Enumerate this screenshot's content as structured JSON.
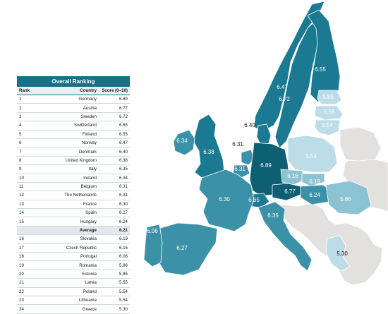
{
  "ranking": {
    "title": "Overall Ranking",
    "headers": {
      "rank": "Rank",
      "country": "Country",
      "score": "Score (0–10)"
    },
    "rows": [
      {
        "rank": "1",
        "country": "Germany",
        "score": "6.89"
      },
      {
        "rank": "2",
        "country": "Austria",
        "score": "6.77"
      },
      {
        "rank": "3",
        "country": "Sweden",
        "score": "6.72"
      },
      {
        "rank": "4",
        "country": "Switzerland",
        "score": "6.65"
      },
      {
        "rank": "5",
        "country": "Finland",
        "score": "6.55"
      },
      {
        "rank": "6",
        "country": "Norway",
        "score": "6.47"
      },
      {
        "rank": "7",
        "country": "Denmark",
        "score": "6.40"
      },
      {
        "rank": "8",
        "country": "United Kingdom",
        "score": "6.38"
      },
      {
        "rank": "9",
        "country": "Italy",
        "score": "6.35"
      },
      {
        "rank": "10",
        "country": "Ireland",
        "score": "6.34"
      },
      {
        "rank": "11",
        "country": "Belgium",
        "score": "6.31"
      },
      {
        "rank": "12",
        "country": "The Netherlands",
        "score": "6.31"
      },
      {
        "rank": "13",
        "country": "France",
        "score": "6.30"
      },
      {
        "rank": "14",
        "country": "Spain",
        "score": "6.27"
      },
      {
        "rank": "15",
        "country": "Hungary",
        "score": "6.24"
      },
      {
        "rank": "",
        "country": "Average",
        "score": "6.21",
        "average": true
      },
      {
        "rank": "16",
        "country": "Slovakia",
        "score": "6.19"
      },
      {
        "rank": "17",
        "country": "Czech Republic",
        "score": "6.16"
      },
      {
        "rank": "18",
        "country": "Portugal",
        "score": "6.06"
      },
      {
        "rank": "19",
        "country": "Romania",
        "score": "5.86"
      },
      {
        "rank": "20",
        "country": "Estonia",
        "score": "5.85"
      },
      {
        "rank": "21",
        "country": "Latvia",
        "score": "5.55"
      },
      {
        "rank": "22",
        "country": "Poland",
        "score": "5.54"
      },
      {
        "rank": "23",
        "country": "Lithuania",
        "score": "5.54"
      },
      {
        "rank": "24",
        "country": "Greece",
        "score": "5.30"
      }
    ]
  },
  "map": {
    "colors": {
      "darkest": "#0e5f73",
      "dark": "#1b7a91",
      "mid": "#3b91a8",
      "light": "#8cc3d3",
      "lightest": "#bcdde7",
      "unranked": "#e3e1de"
    },
    "countries": [
      {
        "name": "Norway",
        "score": "6.47",
        "shade": "dark"
      },
      {
        "name": "Sweden",
        "score": "6.72",
        "shade": "dark"
      },
      {
        "name": "Finland",
        "score": "6.55",
        "shade": "dark"
      },
      {
        "name": "Estonia",
        "score": "5.85",
        "shade": "lightest"
      },
      {
        "name": "Latvia",
        "score": "5.55",
        "shade": "lightest"
      },
      {
        "name": "Lithuania",
        "score": "5.54",
        "shade": "lightest"
      },
      {
        "name": "Denmark",
        "score": "6.40",
        "shade": "dark"
      },
      {
        "name": "United Kingdom",
        "score": "6.38",
        "shade": "dark"
      },
      {
        "name": "Ireland",
        "score": "6.34",
        "shade": "mid"
      },
      {
        "name": "The Netherlands",
        "score": "6.31",
        "shade": "mid"
      },
      {
        "name": "Belgium",
        "score": "6.31",
        "shade": "mid"
      },
      {
        "name": "Germany",
        "score": "6.89",
        "shade": "darkest"
      },
      {
        "name": "Poland",
        "score": "5.54",
        "shade": "lightest"
      },
      {
        "name": "Czech Republic",
        "score": "6.16",
        "shade": "light"
      },
      {
        "name": "Slovakia",
        "score": "6.19",
        "shade": "light"
      },
      {
        "name": "Austria",
        "score": "6.77",
        "shade": "darkest"
      },
      {
        "name": "Switzerland",
        "score": "6.65",
        "shade": "dark"
      },
      {
        "name": "Hungary",
        "score": "6.24",
        "shade": "mid"
      },
      {
        "name": "Romania",
        "score": "5.86",
        "shade": "light"
      },
      {
        "name": "France",
        "score": "6.30",
        "shade": "mid"
      },
      {
        "name": "Italy",
        "score": "6.35",
        "shade": "mid"
      },
      {
        "name": "Spain",
        "score": "6.27",
        "shade": "mid"
      },
      {
        "name": "Portugal",
        "score": "6.06",
        "shade": "mid"
      },
      {
        "name": "Greece",
        "score": "5.30",
        "shade": "lightest"
      }
    ]
  }
}
